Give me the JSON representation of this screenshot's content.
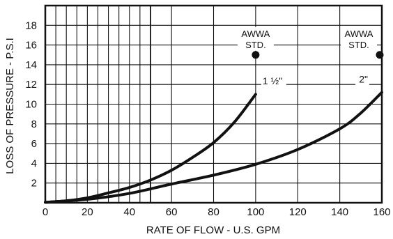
{
  "chart_data": {
    "type": "line",
    "xlabel": "RATE OF FLOW - U.S. GPM",
    "ylabel": "LOSS OF PRESSURE - P.S.I",
    "xlim": [
      0,
      160
    ],
    "ylim": [
      0,
      20
    ],
    "x_ticks": [
      "0",
      "20",
      "40",
      "60",
      "80",
      "100",
      "120",
      "140",
      "160"
    ],
    "y_ticks": [
      "2",
      "4",
      "6",
      "8",
      "10",
      "12",
      "14",
      "16",
      "18"
    ],
    "grid": true,
    "series": [
      {
        "name": "1 1/2\"",
        "label": "1 ½\"",
        "x": [
          0,
          10,
          20,
          30,
          40,
          50,
          60,
          70,
          80,
          90,
          100
        ],
        "y": [
          0.05,
          0.2,
          0.5,
          1.0,
          1.55,
          2.3,
          3.3,
          4.6,
          6.1,
          8.2,
          11.0
        ]
      },
      {
        "name": "2\"",
        "label": "2\"",
        "x": [
          0,
          20,
          40,
          60,
          80,
          100,
          120,
          140,
          150,
          160
        ],
        "y": [
          0.05,
          0.35,
          0.95,
          1.9,
          2.8,
          3.9,
          5.4,
          7.5,
          9.1,
          11.2
        ]
      }
    ],
    "markers": [
      {
        "x": 100,
        "y": 15.0,
        "label_line1": "AWWA",
        "label_line2": "STD."
      },
      {
        "x": 159,
        "y": 15.0,
        "label_line1": "AWWA",
        "label_line2": "STD."
      }
    ]
  }
}
